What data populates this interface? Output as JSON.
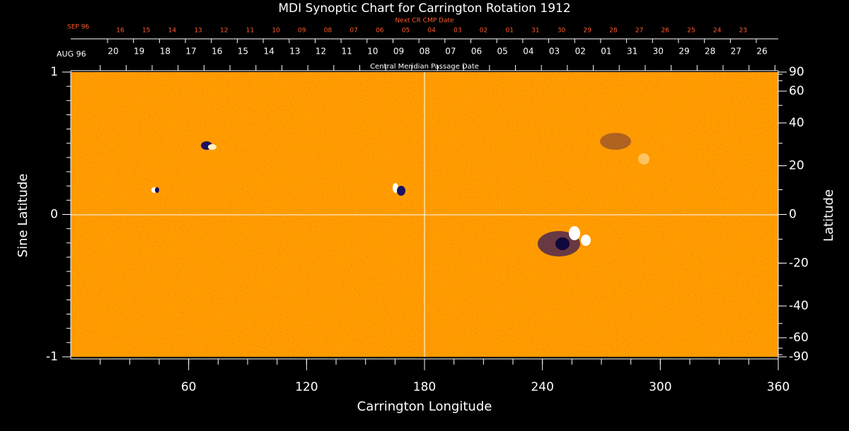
{
  "chart_data": {
    "type": "synoptic-map",
    "title": "MDI Synoptic Chart for Carrington Rotation 1912",
    "next_cr": {
      "label": "Next CR CMP Date",
      "start": "SEP 96",
      "dates": [
        "16",
        "15",
        "14",
        "13",
        "12",
        "11",
        "10",
        "09",
        "08",
        "07",
        "06",
        "05",
        "04",
        "03",
        "02",
        "01",
        "31",
        "30",
        "29",
        "28",
        "27",
        "26",
        "25",
        "24",
        "23"
      ]
    },
    "cmp": {
      "label": "Central Meridian Passage Date",
      "start": "AUG 96",
      "dates": [
        "20",
        "19",
        "18",
        "17",
        "16",
        "15",
        "14",
        "13",
        "12",
        "11",
        "10",
        "09",
        "08",
        "07",
        "06",
        "05",
        "04",
        "03",
        "02",
        "01",
        "31",
        "30",
        "29",
        "28",
        "27",
        "26"
      ]
    },
    "x_label": "Carrington Longitude",
    "y_label": "Sine Latitude",
    "y2_label": "Latitude",
    "xlim": [
      0,
      360
    ],
    "xticks": [
      60,
      120,
      180,
      240,
      300,
      360
    ],
    "ylim": [
      -1,
      1
    ],
    "yticks": [
      -1,
      0,
      1
    ],
    "y2ticks": [
      90,
      60,
      40,
      20,
      0,
      -20,
      -40,
      -60,
      -90
    ]
  }
}
